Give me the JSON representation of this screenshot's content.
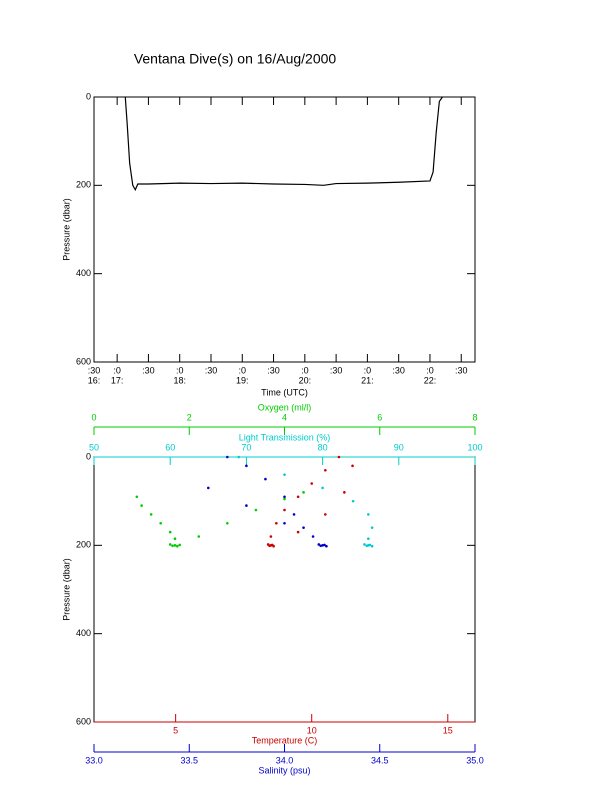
{
  "chart_data": [
    {
      "type": "line",
      "title": "Ventana Dive(s) on 16/Aug/2000",
      "xlabel": "Time (UTC)",
      "ylabel": "Pressure (dbar)",
      "xlim": [
        16.63,
        22.72
      ],
      "ylim": [
        0,
        600
      ],
      "y_inverted": true,
      "xticks": [
        {
          "value": 16.5,
          "label": ":30"
        },
        {
          "value": 17,
          "label": ":0"
        },
        {
          "value": 17.5,
          "label": ":30"
        },
        {
          "value": 18,
          "label": ":0"
        },
        {
          "value": 18.5,
          "label": ":30"
        },
        {
          "value": 19,
          "label": ":0"
        },
        {
          "value": 19.5,
          "label": ":30"
        },
        {
          "value": 20,
          "label": ":0"
        },
        {
          "value": 20.5,
          "label": ":30"
        },
        {
          "value": 21,
          "label": ":0"
        },
        {
          "value": 21.5,
          "label": ":30"
        },
        {
          "value": 22,
          "label": ":0"
        },
        {
          "value": 22.5,
          "label": ":30"
        }
      ],
      "x_hour_ticks": [
        {
          "value": 16.5,
          "label": "16:"
        },
        {
          "value": 17,
          "label": "17:"
        },
        {
          "value": 18,
          "label": "18:"
        },
        {
          "value": 19,
          "label": "19:"
        },
        {
          "value": 20,
          "label": "20:"
        },
        {
          "value": 21,
          "label": "21:"
        },
        {
          "value": 22,
          "label": "22:"
        }
      ],
      "yticks": [
        0,
        200,
        400,
        600
      ],
      "color": "#000000",
      "x": [
        17.13,
        17.16,
        17.2,
        17.25,
        17.29,
        17.33,
        17.5,
        18,
        18.5,
        19,
        19.5,
        20,
        20.3,
        20.5,
        21,
        21.5,
        22,
        22.05,
        22.1,
        22.15,
        22.2
      ],
      "values": [
        0,
        60,
        150,
        200,
        210,
        197,
        197,
        195,
        196,
        195,
        197,
        198,
        200,
        196,
        195,
        193,
        190,
        170,
        80,
        10,
        0
      ]
    },
    {
      "type": "scatter",
      "ylabel": "Pressure (dbar)",
      "ylim": [
        0,
        600
      ],
      "y_inverted": true,
      "yticks": [
        0,
        200,
        400,
        600
      ],
      "xaxes": [
        {
          "label": "Oxygen (ml/l)",
          "color": "#00cc00",
          "position": "top",
          "xlim": [
            0,
            8
          ],
          "xticks": [
            0,
            2,
            4,
            6,
            8
          ]
        },
        {
          "label": "Light Transmission (%)",
          "color": "#00cccc",
          "position": "top",
          "xlim": [
            50,
            100
          ],
          "xticks": [
            50,
            60,
            70,
            80,
            90,
            100
          ]
        },
        {
          "label": "Temperature (C)",
          "color": "#cc0000",
          "position": "bottom",
          "xlim": [
            2,
            16
          ],
          "xticks": [
            5,
            10,
            15
          ]
        },
        {
          "label": "Salinity (psu)",
          "color": "#0000cc",
          "position": "bottom",
          "xlim": [
            33,
            35
          ],
          "xticks": [
            {
              "value": 33,
              "label": "33.0"
            },
            33.5,
            {
              "value": 34,
              "label": "34.0"
            },
            34.5,
            {
              "value": 35,
              "label": "35.0"
            }
          ]
        }
      ],
      "series": [
        {
          "axis": 0,
          "color": "#00cc00",
          "x": [
            0.9,
            1.0,
            1.2,
            1.4,
            1.6,
            1.7,
            1.6,
            1.7,
            1.75,
            1.65,
            1.8,
            2.2,
            2.8,
            3.4,
            4.0,
            4.4
          ],
          "values": [
            90,
            110,
            130,
            150,
            170,
            185,
            198,
            200,
            202,
            201,
            199,
            180,
            150,
            120,
            95,
            80
          ]
        },
        {
          "axis": 1,
          "color": "#00cccc",
          "x": [
            69,
            75,
            80,
            84,
            86,
            86.5,
            86,
            85.5,
            86,
            86.5,
            85.8,
            86.2
          ],
          "values": [
            0,
            40,
            70,
            100,
            130,
            160,
            185,
            198,
            200,
            202,
            201,
            199
          ]
        },
        {
          "axis": 2,
          "color": "#cc0000",
          "x": [
            11.0,
            10.5,
            10.0,
            9.5,
            9.0,
            8.7,
            8.5,
            8.4,
            8.5,
            8.6,
            8.45,
            8.55,
            9.5,
            10.5,
            11.2,
            11.5
          ],
          "values": [
            0,
            30,
            60,
            90,
            120,
            150,
            180,
            198,
            200,
            202,
            201,
            199,
            170,
            130,
            80,
            20
          ]
        },
        {
          "axis": 3,
          "color": "#0000cc",
          "x": [
            33.7,
            33.8,
            33.9,
            34.0,
            34.05,
            34.1,
            34.15,
            34.18,
            34.2,
            34.22,
            34.19,
            34.21,
            34.0,
            33.8,
            33.6
          ],
          "values": [
            0,
            20,
            50,
            90,
            130,
            160,
            180,
            198,
            200,
            202,
            201,
            199,
            150,
            110,
            70
          ]
        }
      ]
    }
  ]
}
